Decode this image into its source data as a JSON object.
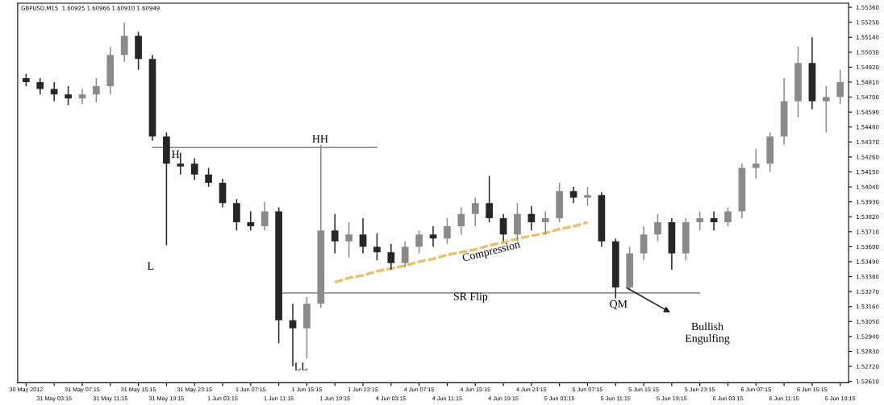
{
  "chart_data": {
    "type": "candlestick",
    "title": "GBPUSD,M15  1.60925 1.60966 1.60910 1.60949",
    "categories": [
      "30 May 2012",
      null,
      "31 May 03:15",
      null,
      "31 May 07:15",
      null,
      "31 May 11:15",
      null,
      "31 May 15:15",
      null,
      "31 May 19:15",
      null,
      "31 May 23:15",
      null,
      "1 Jun 03:15",
      null,
      "1 Jun 07:15",
      null,
      "1 Jun 11:15",
      null,
      "1 Jun 15:15",
      null,
      "1 Jun 19:15",
      null,
      "1 Jun 23:15",
      null,
      "4 Jun 03:15",
      null,
      "4 Jun 07:15",
      null,
      "4 Jun 11:15",
      null,
      "4 Jun 15:15",
      null,
      "4 Jun 19:15",
      null,
      "4 Jun 23:15",
      null,
      "5 Jun 03:15",
      null,
      "5 Jun 07:15",
      null,
      "5 Jun 11:15",
      null,
      "5 Jun 15:15",
      null,
      "5 Jun 19:15",
      null,
      "5 Jun 23:15",
      null,
      "6 Jun 03:15",
      null,
      "6 Jun 07:15",
      null,
      "6 Jun 11:15",
      null,
      "6 Jun 15:15",
      null,
      "6 Jun 19:15"
    ],
    "ohlc": [
      [
        1.5484,
        1.5487,
        1.5478,
        1.5481
      ],
      [
        1.5481,
        1.5484,
        1.5472,
        1.5476
      ],
      [
        1.5476,
        1.5481,
        1.5467,
        1.5472
      ],
      [
        1.5472,
        1.5478,
        1.5464,
        1.5469
      ],
      [
        1.5469,
        1.5476,
        1.5465,
        1.5472
      ],
      [
        1.5472,
        1.5484,
        1.5466,
        1.5478
      ],
      [
        1.5478,
        1.5507,
        1.5472,
        1.5501
      ],
      [
        1.5501,
        1.5525,
        1.5496,
        1.5515
      ],
      [
        1.5515,
        1.5518,
        1.549,
        1.5498
      ],
      [
        1.5498,
        1.5501,
        1.5438,
        1.5441
      ],
      [
        1.5441,
        1.5444,
        1.5361,
        1.5421
      ],
      [
        1.5421,
        1.5429,
        1.5413,
        1.5419
      ],
      [
        1.5421,
        1.5425,
        1.5409,
        1.5413
      ],
      [
        1.5413,
        1.5418,
        1.5404,
        1.5407
      ],
      [
        1.5407,
        1.541,
        1.5389,
        1.5392
      ],
      [
        1.5392,
        1.5395,
        1.5372,
        1.5378
      ],
      [
        1.5378,
        1.5386,
        1.5372,
        1.5375
      ],
      [
        1.5375,
        1.5393,
        1.5372,
        1.5386
      ],
      [
        1.5386,
        1.5389,
        1.5289,
        1.5306
      ],
      [
        1.5306,
        1.5318,
        1.5272,
        1.53
      ],
      [
        1.53,
        1.5323,
        1.5278,
        1.5318
      ],
      [
        1.5318,
        1.5435,
        1.5315,
        1.5372
      ],
      [
        1.5372,
        1.5384,
        1.5355,
        1.5364
      ],
      [
        1.5364,
        1.5378,
        1.5352,
        1.5369
      ],
      [
        1.5369,
        1.5381,
        1.5355,
        1.536
      ],
      [
        1.536,
        1.537,
        1.535,
        1.5356
      ],
      [
        1.5356,
        1.5362,
        1.5343,
        1.5348
      ],
      [
        1.5348,
        1.5364,
        1.5345,
        1.536
      ],
      [
        1.536,
        1.5372,
        1.5355,
        1.5369
      ],
      [
        1.5369,
        1.5375,
        1.536,
        1.5366
      ],
      [
        1.5366,
        1.5381,
        1.5362,
        1.5375
      ],
      [
        1.5375,
        1.5389,
        1.5369,
        1.5384
      ],
      [
        1.5384,
        1.5396,
        1.5375,
        1.5392
      ],
      [
        1.5392,
        1.5412,
        1.5378,
        1.5381
      ],
      [
        1.5381,
        1.5384,
        1.5364,
        1.5369
      ],
      [
        1.5369,
        1.5392,
        1.5364,
        1.5384
      ],
      [
        1.5384,
        1.539,
        1.5372,
        1.5378
      ],
      [
        1.5378,
        1.5386,
        1.5369,
        1.5381
      ],
      [
        1.5381,
        1.5407,
        1.5378,
        1.5401
      ],
      [
        1.5401,
        1.5404,
        1.5392,
        1.5396
      ],
      [
        1.5396,
        1.5404,
        1.539,
        1.5398
      ],
      [
        1.5398,
        1.54,
        1.536,
        1.5364
      ],
      [
        1.5364,
        1.5366,
        1.5322,
        1.533
      ],
      [
        1.533,
        1.536,
        1.5328,
        1.5355
      ],
      [
        1.5355,
        1.5375,
        1.535,
        1.5369
      ],
      [
        1.5369,
        1.5384,
        1.5364,
        1.5378
      ],
      [
        1.5378,
        1.5381,
        1.5343,
        1.5355
      ],
      [
        1.5355,
        1.5381,
        1.535,
        1.5378
      ],
      [
        1.5378,
        1.5386,
        1.5372,
        1.5381
      ],
      [
        1.5381,
        1.5386,
        1.5372,
        1.5378
      ],
      [
        1.5378,
        1.5389,
        1.5375,
        1.5386
      ],
      [
        1.5386,
        1.5421,
        1.5381,
        1.5418
      ],
      [
        1.5418,
        1.5432,
        1.541,
        1.5421
      ],
      [
        1.5421,
        1.5444,
        1.5415,
        1.5441
      ],
      [
        1.5441,
        1.5484,
        1.5435,
        1.5467
      ],
      [
        1.5467,
        1.5507,
        1.5455,
        1.5495
      ],
      [
        1.5495,
        1.5514,
        1.5461,
        1.5467
      ],
      [
        1.5467,
        1.5478,
        1.5444,
        1.547
      ],
      [
        1.547,
        1.549,
        1.5465,
        1.5481
      ]
    ],
    "colors": [
      "#262626",
      "#262626",
      "#262626",
      "#262626",
      "#8a8a8a",
      "#8a8a8a",
      "#8a8a8a",
      "#8a8a8a",
      "#262626",
      "#262626",
      "#262626",
      "#262626",
      "#262626",
      "#262626",
      "#262626",
      "#262626",
      "#262626",
      "#8a8a8a",
      "#262626",
      "#262626",
      "#8a8a8a",
      "#8a8a8a",
      "#262626",
      "#8a8a8a",
      "#262626",
      "#262626",
      "#262626",
      "#8a8a8a",
      "#8a8a8a",
      "#262626",
      "#8a8a8a",
      "#8a8a8a",
      "#8a8a8a",
      "#262626",
      "#262626",
      "#8a8a8a",
      "#262626",
      "#8a8a8a",
      "#8a8a8a",
      "#262626",
      "#8a8a8a",
      "#262626",
      "#262626",
      "#8a8a8a",
      "#8a8a8a",
      "#8a8a8a",
      "#262626",
      "#8a8a8a",
      "#8a8a8a",
      "#262626",
      "#8a8a8a",
      "#8a8a8a",
      "#8a8a8a",
      "#8a8a8a",
      "#8a8a8a",
      "#8a8a8a",
      "#262626",
      "#8a8a8a",
      "#8a8a8a"
    ],
    "series": [
      {
        "type": "line",
        "color": "#666666",
        "line_style": "solid",
        "values": [
          null,
          null,
          null,
          null,
          null,
          null,
          null,
          null,
          null,
          1.5433,
          1.5433,
          1.5433,
          1.5433,
          1.5433,
          1.5433,
          1.5433,
          1.5433,
          1.5433,
          1.5433,
          1.5433,
          1.5433,
          1.5433,
          1.5433,
          1.5433,
          1.5433,
          1.5433,
          null,
          null,
          null,
          null,
          null,
          null,
          null,
          null,
          null,
          null,
          null,
          null,
          null,
          null,
          null,
          null,
          null,
          null,
          null,
          null,
          null,
          null,
          null,
          null,
          null,
          null,
          null,
          null,
          null,
          null,
          null,
          null,
          null
        ]
      },
      {
        "type": "line",
        "color": "#666666",
        "line_style": "solid",
        "values": [
          null,
          null,
          null,
          null,
          null,
          null,
          null,
          null,
          null,
          null,
          null,
          null,
          null,
          null,
          null,
          null,
          null,
          null,
          1.5326,
          1.5326,
          1.5326,
          1.5326,
          1.5326,
          1.5326,
          1.5326,
          1.5326,
          1.5326,
          1.5326,
          1.5326,
          1.5326,
          1.5326,
          1.5326,
          1.5326,
          1.5326,
          1.5326,
          1.5326,
          1.5326,
          1.5326,
          1.5326,
          1.5326,
          1.5326,
          1.5326,
          1.5326,
          1.5326,
          1.5326,
          1.5326,
          1.5326,
          1.5326,
          1.5326,
          null,
          null,
          null,
          null,
          null,
          null,
          null,
          null,
          null,
          null
        ]
      },
      {
        "type": "line",
        "color": "#e8c170",
        "line_style": "dotted",
        "values": [
          null,
          null,
          null,
          null,
          null,
          null,
          null,
          null,
          null,
          null,
          null,
          null,
          null,
          null,
          null,
          null,
          null,
          null,
          null,
          null,
          null,
          null,
          1.5334,
          1.5337,
          1.5339,
          1.5342,
          1.5344,
          1.5346,
          1.5349,
          1.5351,
          1.5354,
          1.5356,
          1.5358,
          1.5361,
          1.5363,
          1.5366,
          1.5368,
          1.537,
          1.5373,
          1.5375,
          1.5378,
          null,
          null,
          null,
          null,
          null,
          null,
          null,
          null,
          null,
          null,
          null,
          null,
          null,
          null,
          null,
          null,
          null,
          null
        ]
      }
    ],
    "ylim": [
      1.526,
      1.5539
    ],
    "yticks": [
      {
        "value": 1.5261,
        "label": "1.52610"
      },
      {
        "value": 1.5272,
        "label": "1.52720"
      },
      {
        "value": 1.5283,
        "label": "1.52830"
      },
      {
        "value": 1.5294,
        "label": "1.52940"
      },
      {
        "value": 1.5305,
        "label": "1.53050"
      },
      {
        "value": 1.5316,
        "label": "1.53160"
      },
      {
        "value": 1.5327,
        "label": "1.53270"
      },
      {
        "value": 1.5338,
        "label": "1.53380"
      },
      {
        "value": 1.5349,
        "label": "1.53490"
      },
      {
        "value": 1.536,
        "label": "1.53600"
      },
      {
        "value": 1.5371,
        "label": "1.53710"
      },
      {
        "value": 1.5382,
        "label": "1.53820"
      },
      {
        "value": 1.5393,
        "label": "1.53930"
      },
      {
        "value": 1.5404,
        "label": "1.54040"
      },
      {
        "value": 1.5415,
        "label": "1.54150"
      },
      {
        "value": 1.5426,
        "label": "1.54260"
      },
      {
        "value": 1.5437,
        "label": "1.54370"
      },
      {
        "value": 1.5448,
        "label": "1.54480"
      },
      {
        "value": 1.5459,
        "label": "1.54590"
      },
      {
        "value": 1.547,
        "label": "1.54700"
      },
      {
        "value": 1.5481,
        "label": "1.54810"
      },
      {
        "value": 1.5492,
        "label": "1.54920"
      },
      {
        "value": 1.5503,
        "label": "1.55030"
      },
      {
        "value": 1.5514,
        "label": "1.55140"
      },
      {
        "value": 1.5525,
        "label": "1.55250"
      },
      {
        "value": 1.5536,
        "label": "1.55360"
      }
    ],
    "annotations": [
      "H",
      "L",
      "HH",
      "LL",
      "Compression",
      "SR Flip",
      "QM",
      "Bullish\nEngulfing"
    ],
    "grid": false,
    "legend": false
  }
}
